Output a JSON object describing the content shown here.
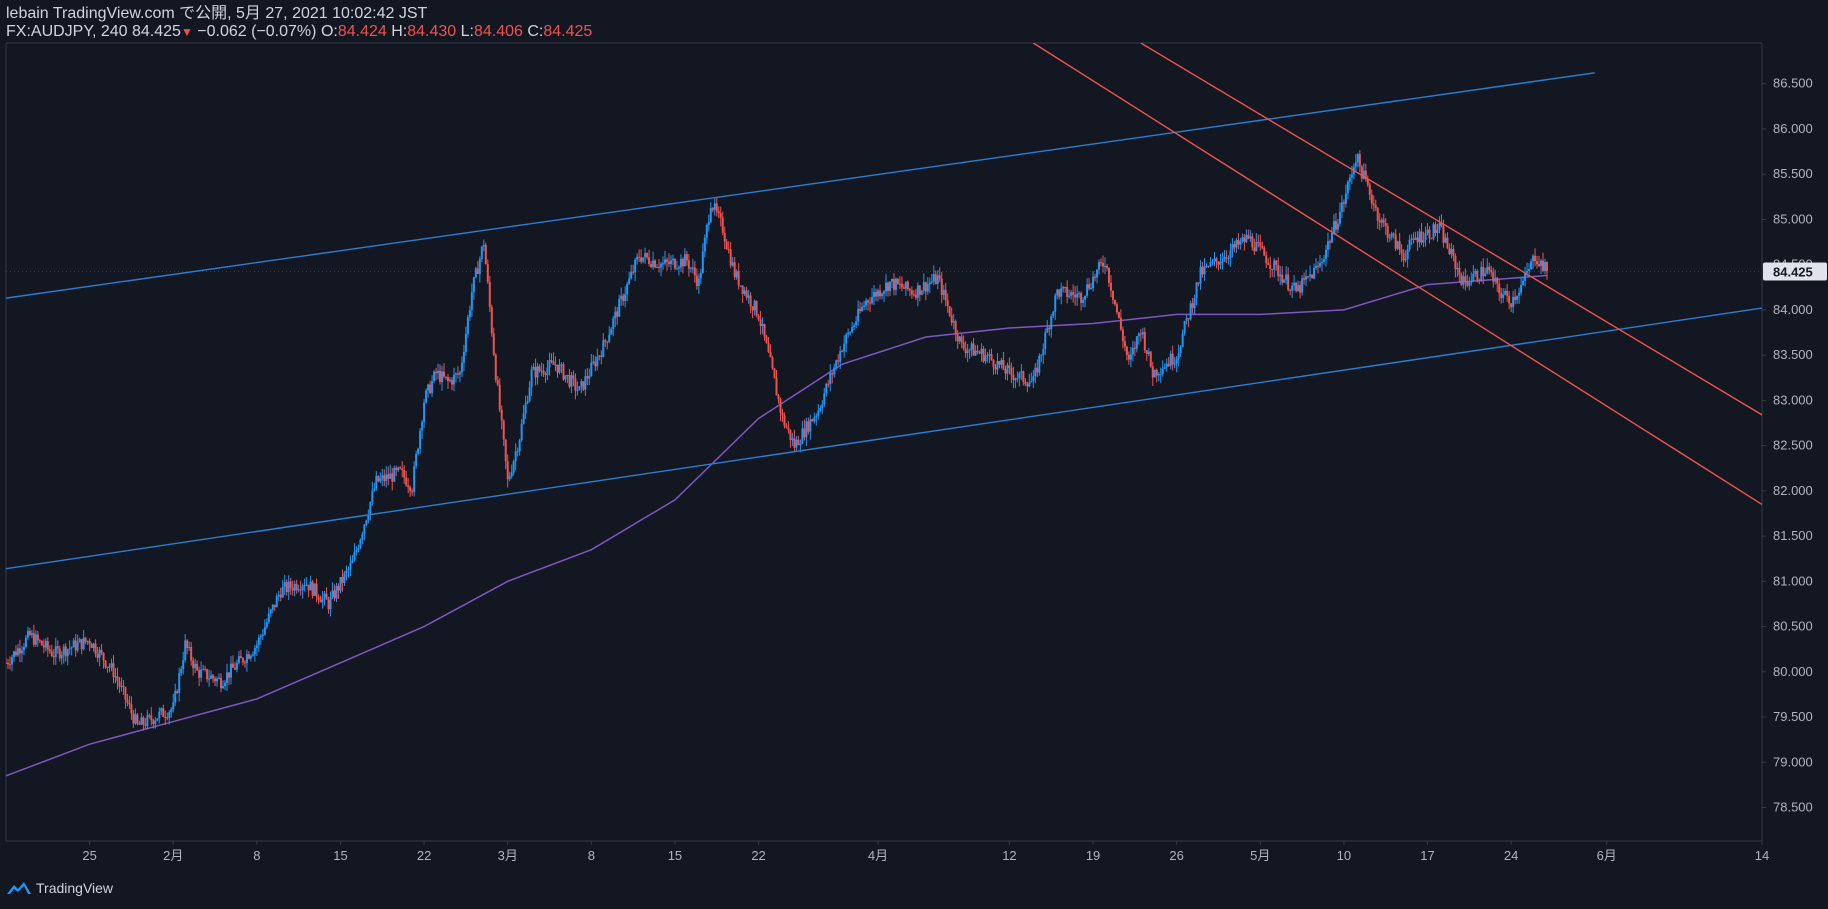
{
  "header": {
    "line1": "lebain TradingView.com で公開, 5月 27, 2021 10:02:42 JST",
    "symbol": "FX:AUDJPY, 240",
    "last": "84.425",
    "change": "−0.062 (−0.07%)",
    "o_label": "O:",
    "o_value": "84.424",
    "h_label": "H:",
    "h_value": "84.430",
    "l_label": "L:",
    "l_value": "84.406",
    "c_label": "C:",
    "c_value": "84.425"
  },
  "brand": {
    "label": "TradingView",
    "icon": "tradingview-logo-icon"
  },
  "colors": {
    "background": "#131722",
    "up": "#2196f3",
    "down": "#ef5350",
    "ma": "#7e57c2",
    "trend_blue": "#2a7fd4",
    "trend_red": "#ef5350",
    "axis_line": "#363a45",
    "text": "#b2b5be",
    "price_label_bg": "#e0e3eb"
  },
  "chart_data": {
    "type": "candlestick",
    "symbol": "FX:AUDJPY",
    "interval": "240",
    "x_ticks": [
      {
        "label": "25",
        "date": "2021-01-25"
      },
      {
        "label": "2月",
        "date": "2021-02-01"
      },
      {
        "label": "8",
        "date": "2021-02-08"
      },
      {
        "label": "15",
        "date": "2021-02-15"
      },
      {
        "label": "22",
        "date": "2021-02-22"
      },
      {
        "label": "3月",
        "date": "2021-03-01"
      },
      {
        "label": "8",
        "date": "2021-03-08"
      },
      {
        "label": "15",
        "date": "2021-03-15"
      },
      {
        "label": "22",
        "date": "2021-03-22"
      },
      {
        "label": "4月",
        "date": "2021-04-01"
      },
      {
        "label": "12",
        "date": "2021-04-12"
      },
      {
        "label": "19",
        "date": "2021-04-19"
      },
      {
        "label": "26",
        "date": "2021-04-26"
      },
      {
        "label": "5月",
        "date": "2021-05-03"
      },
      {
        "label": "10",
        "date": "2021-05-10"
      },
      {
        "label": "17",
        "date": "2021-05-17"
      },
      {
        "label": "24",
        "date": "2021-05-24"
      },
      {
        "label": "6月",
        "date": "2021-06-01"
      },
      {
        "label": "14",
        "date": "2021-06-14"
      }
    ],
    "y_ticks": [
      "86.500",
      "86.000",
      "85.500",
      "85.000",
      "84.500",
      "84.000",
      "83.500",
      "83.000",
      "82.500",
      "82.000",
      "81.500",
      "81.000",
      "80.500",
      "80.000",
      "79.500",
      "79.000",
      "78.500"
    ],
    "ylim": [
      78.13,
      86.95
    ],
    "xlim": [
      "2021-01-18",
      "2021-06-14"
    ],
    "last_price": 84.425,
    "last_price_label": "84.425",
    "price_path": [
      [
        "2021-01-18",
        80.1
      ],
      [
        "2021-01-20",
        80.4
      ],
      [
        "2021-01-22",
        80.2
      ],
      [
        "2021-01-25",
        80.35
      ],
      [
        "2021-01-27",
        80.0
      ],
      [
        "2021-01-29",
        79.4
      ],
      [
        "2021-02-01",
        79.6
      ],
      [
        "2021-02-02",
        80.3
      ],
      [
        "2021-02-03",
        80.0
      ],
      [
        "2021-02-05",
        79.9
      ],
      [
        "2021-02-08",
        80.3
      ],
      [
        "2021-02-10",
        80.9
      ],
      [
        "2021-02-12",
        81.0
      ],
      [
        "2021-02-14",
        80.75
      ],
      [
        "2021-02-16",
        81.2
      ],
      [
        "2021-02-18",
        82.1
      ],
      [
        "2021-02-20",
        82.2
      ],
      [
        "2021-02-21",
        82.05
      ],
      [
        "2021-02-22",
        83.0
      ],
      [
        "2021-02-23",
        83.3
      ],
      [
        "2021-02-24",
        83.2
      ],
      [
        "2021-02-25",
        83.3
      ],
      [
        "2021-02-26",
        84.2
      ],
      [
        "2021-02-27",
        84.75
      ],
      [
        "2021-02-28",
        83.3
      ],
      [
        "2021-03-01",
        82.1
      ],
      [
        "2021-03-02",
        82.6
      ],
      [
        "2021-03-03",
        83.3
      ],
      [
        "2021-03-05",
        83.4
      ],
      [
        "2021-03-07",
        83.1
      ],
      [
        "2021-03-09",
        83.6
      ],
      [
        "2021-03-12",
        84.6
      ],
      [
        "2021-03-14",
        84.5
      ],
      [
        "2021-03-16",
        84.55
      ],
      [
        "2021-03-17",
        84.3
      ],
      [
        "2021-03-18",
        85.2
      ],
      [
        "2021-03-19",
        84.9
      ],
      [
        "2021-03-20",
        84.4
      ],
      [
        "2021-03-22",
        83.95
      ],
      [
        "2021-03-23",
        83.4
      ],
      [
        "2021-03-24",
        82.8
      ],
      [
        "2021-03-25",
        82.5
      ],
      [
        "2021-03-27",
        82.9
      ],
      [
        "2021-03-29",
        83.6
      ],
      [
        "2021-03-31",
        84.1
      ],
      [
        "2021-04-02",
        84.3
      ],
      [
        "2021-04-04",
        84.2
      ],
      [
        "2021-04-06",
        84.35
      ],
      [
        "2021-04-08",
        83.6
      ],
      [
        "2021-04-10",
        83.5
      ],
      [
        "2021-04-12",
        83.3
      ],
      [
        "2021-04-14",
        83.2
      ],
      [
        "2021-04-16",
        84.2
      ],
      [
        "2021-04-18",
        84.15
      ],
      [
        "2021-04-20",
        84.55
      ],
      [
        "2021-04-22",
        83.4
      ],
      [
        "2021-04-23",
        83.8
      ],
      [
        "2021-04-24",
        83.3
      ],
      [
        "2021-04-26",
        83.5
      ],
      [
        "2021-04-28",
        84.4
      ],
      [
        "2021-04-30",
        84.6
      ],
      [
        "2021-05-02",
        84.8
      ],
      [
        "2021-05-04",
        84.5
      ],
      [
        "2021-05-06",
        84.2
      ],
      [
        "2021-05-08",
        84.5
      ],
      [
        "2021-05-10",
        85.2
      ],
      [
        "2021-05-11",
        85.7
      ],
      [
        "2021-05-13",
        85.0
      ],
      [
        "2021-05-15",
        84.6
      ],
      [
        "2021-05-16",
        84.8
      ],
      [
        "2021-05-18",
        84.9
      ],
      [
        "2021-05-19",
        84.6
      ],
      [
        "2021-05-20",
        84.3
      ],
      [
        "2021-05-22",
        84.45
      ],
      [
        "2021-05-23",
        84.2
      ],
      [
        "2021-05-24",
        84.1
      ],
      [
        "2021-05-25",
        84.3
      ],
      [
        "2021-05-26",
        84.6
      ],
      [
        "2021-05-27",
        84.425
      ]
    ],
    "moving_average": [
      [
        "2021-01-18",
        78.85
      ],
      [
        "2021-01-25",
        79.2
      ],
      [
        "2021-02-01",
        79.45
      ],
      [
        "2021-02-08",
        79.7
      ],
      [
        "2021-02-15",
        80.1
      ],
      [
        "2021-02-22",
        80.5
      ],
      [
        "2021-03-01",
        81.0
      ],
      [
        "2021-03-08",
        81.35
      ],
      [
        "2021-03-15",
        81.9
      ],
      [
        "2021-03-22",
        82.8
      ],
      [
        "2021-03-29",
        83.4
      ],
      [
        "2021-04-05",
        83.7
      ],
      [
        "2021-04-12",
        83.8
      ],
      [
        "2021-04-19",
        83.85
      ],
      [
        "2021-04-26",
        83.95
      ],
      [
        "2021-05-03",
        83.95
      ],
      [
        "2021-05-10",
        84.0
      ],
      [
        "2021-05-17",
        84.28
      ],
      [
        "2021-05-24",
        84.35
      ],
      [
        "2021-05-27",
        84.38
      ]
    ],
    "trendlines": [
      {
        "color": "blue",
        "points": [
          [
            "2021-01-18",
            84.13
          ],
          [
            "2021-05-31",
            86.62
          ]
        ]
      },
      {
        "color": "blue",
        "points": [
          [
            "2021-01-18",
            81.14
          ],
          [
            "2021-06-14",
            84.02
          ]
        ]
      },
      {
        "color": "red",
        "points": [
          [
            "2021-04-14",
            86.95
          ],
          [
            "2021-06-14",
            81.85
          ]
        ]
      },
      {
        "color": "red",
        "points": [
          [
            "2021-04-23",
            86.95
          ],
          [
            "2021-06-14",
            82.84
          ]
        ]
      }
    ],
    "xlabel": "",
    "ylabel": "",
    "grid": false
  }
}
